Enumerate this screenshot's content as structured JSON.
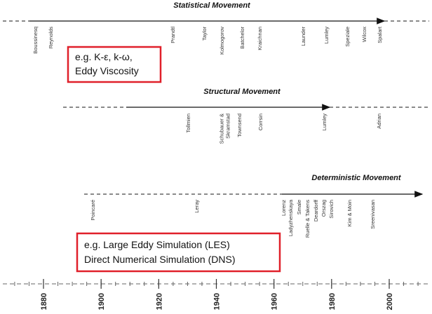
{
  "rows": [
    {
      "title": "Statistical Movement",
      "names": [
        [
          "Boussinesq"
        ],
        [
          "Reynolds"
        ],
        [
          "Prandtl"
        ],
        [
          "Taylor"
        ],
        [
          "Kolmogorov"
        ],
        [
          "Batchelor"
        ],
        [
          "Kraichnan"
        ],
        [
          "Launder"
        ],
        [
          "Lumley"
        ],
        [
          "Speziale"
        ],
        [
          "Wilcox"
        ],
        [
          "Spalart"
        ]
      ]
    },
    {
      "title": "Structural Movement",
      "names": [
        [
          "Tollmien"
        ],
        [
          "Schubauer &",
          "Skramstad"
        ],
        [
          "Townsend"
        ],
        [
          "Corrsin"
        ],
        [
          "Lumley"
        ],
        [
          "Adrian"
        ]
      ]
    },
    {
      "title": "Deterministic Movement",
      "names": [
        [
          "Poincaré"
        ],
        [
          "Leray"
        ],
        [
          "Lorenz"
        ],
        [
          "Ladyzhenskaya"
        ],
        [
          "Smale"
        ],
        [
          "Ruelle & Takens"
        ],
        [
          "Deardorff"
        ],
        [
          "Orszag"
        ],
        [
          "Sirovich"
        ],
        [
          "Kim & Moin"
        ],
        [
          "Sreenivasan"
        ]
      ]
    }
  ],
  "boxes": [
    {
      "lines": [
        "e.g. K-ε, k-ω,",
        "Eddy Viscosity"
      ]
    },
    {
      "lines": [
        "e.g. Large Eddy Simulation (LES)",
        "Direct Numerical Simulation (DNS)"
      ]
    }
  ],
  "axis": {
    "years": [
      1880,
      1900,
      1920,
      1940,
      1960,
      1980,
      2000
    ]
  }
}
